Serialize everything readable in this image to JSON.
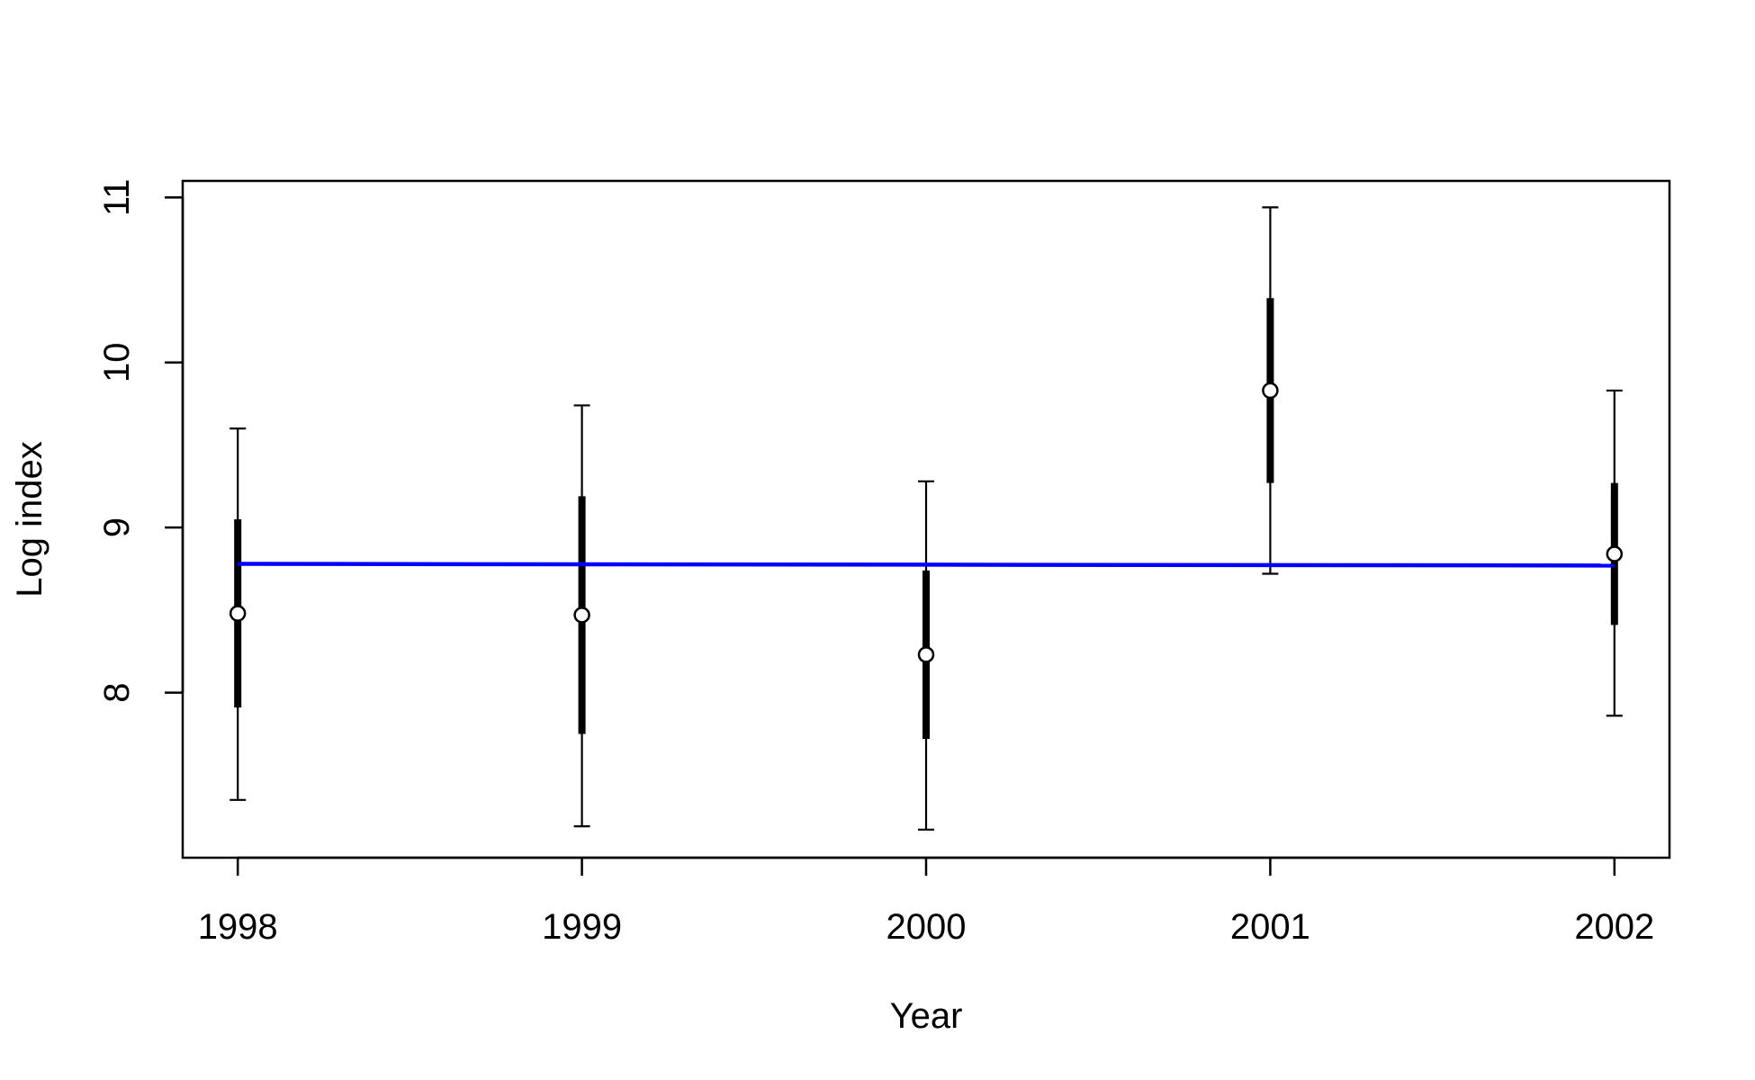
{
  "chart_data": {
    "type": "scatter",
    "title": "",
    "xlabel": "Year",
    "ylabel": "Log index",
    "x": [
      "1998",
      "1999",
      "2000",
      "2001",
      "2002"
    ],
    "y_ticks": [
      "8",
      "9",
      "10",
      "11"
    ],
    "xlim": [
      1997.84,
      2002.16
    ],
    "ylim": [
      7.0,
      11.1
    ],
    "grid": false,
    "legend": "none",
    "series": [
      {
        "type": "point-interval",
        "points": [
          {
            "x": 1998,
            "y": 8.48,
            "inner": [
              7.91,
              9.05
            ],
            "outer": [
              7.35,
              9.6
            ]
          },
          {
            "x": 1999,
            "y": 8.47,
            "inner": [
              7.75,
              9.19
            ],
            "outer": [
              7.19,
              9.74
            ]
          },
          {
            "x": 2000,
            "y": 8.23,
            "inner": [
              7.72,
              8.74
            ],
            "outer": [
              7.17,
              9.28
            ]
          },
          {
            "x": 2001,
            "y": 9.83,
            "inner": [
              9.27,
              10.39
            ],
            "outer": [
              8.72,
              10.94
            ]
          },
          {
            "x": 2002,
            "y": 8.84,
            "inner": [
              8.41,
              9.27
            ],
            "outer": [
              7.86,
              9.83
            ]
          }
        ]
      },
      {
        "type": "line",
        "x": [
          1998,
          2002
        ],
        "values": [
          8.78,
          8.77
        ],
        "color": "#0000ff"
      }
    ]
  }
}
